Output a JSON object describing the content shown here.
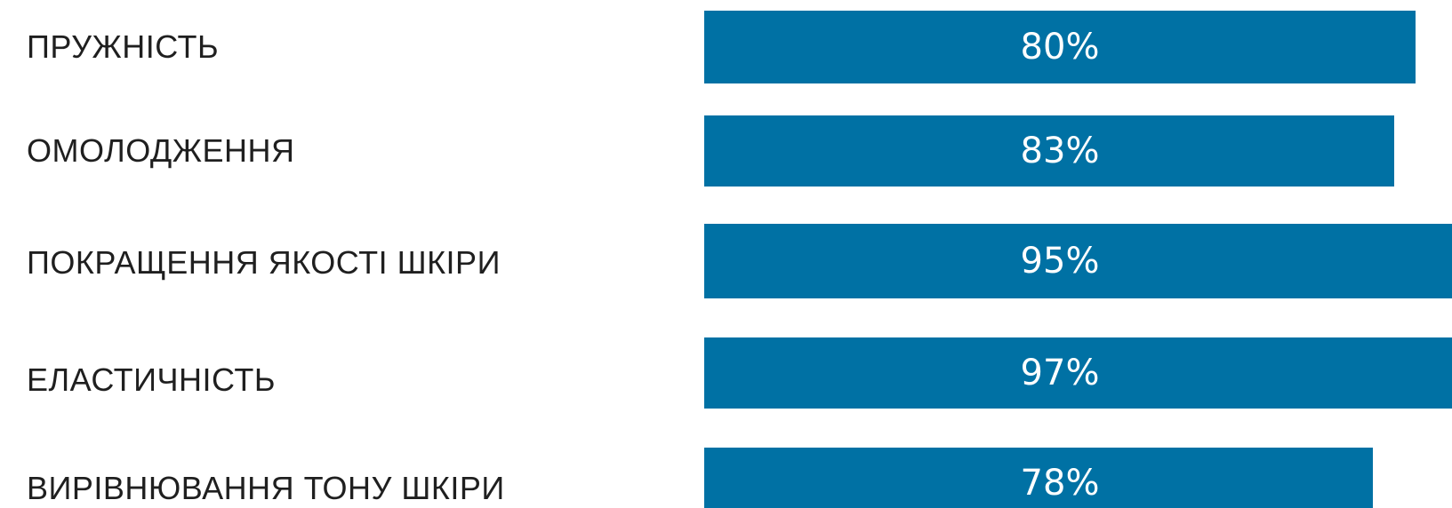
{
  "chart_data": {
    "type": "bar",
    "orientation": "horizontal",
    "categories": [
      "ПРУЖНІСТЬ",
      "ОМОЛОДЖЕННЯ",
      "ПОКРАЩЕННЯ ЯКОСТІ ШКІРИ",
      "ЕЛАСТИЧНІСТЬ",
      "ВИРІВНЮВАННЯ ТОНУ ШКІРИ"
    ],
    "values": [
      80,
      83,
      95,
      97,
      78
    ],
    "value_labels": [
      "80%",
      "83%",
      "95%",
      "97%",
      "78%"
    ],
    "title": "",
    "xlabel": "",
    "ylabel": "",
    "grid": false,
    "legend": "none",
    "colors": {
      "bar": "#0071a4",
      "value_text": "#ffffff",
      "category_text": "#1f1f1f"
    }
  }
}
